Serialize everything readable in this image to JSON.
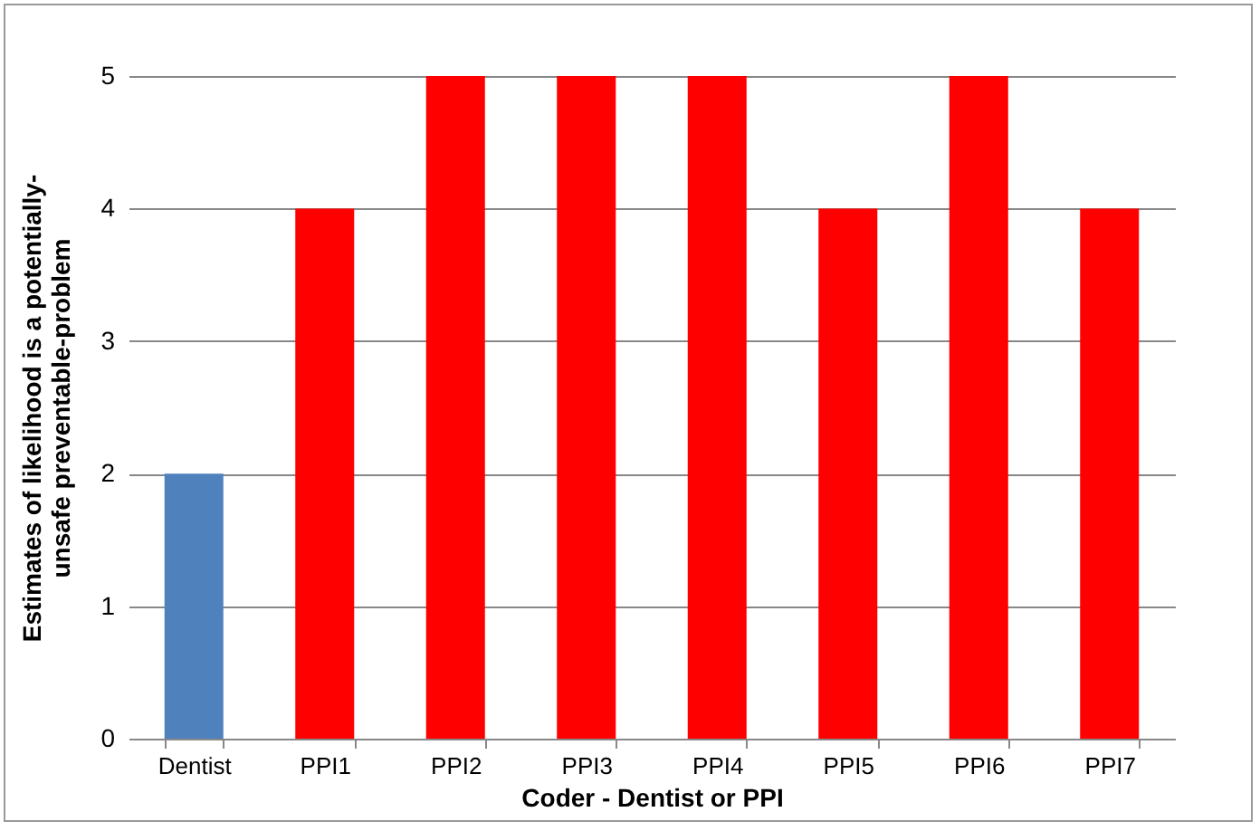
{
  "chart_data": {
    "type": "bar",
    "xlabel": "Coder - Dentist or PPI",
    "ylabel": "Estimates of likelihood is a potentially-unsafe preventable-problem",
    "categories": [
      "Dentist",
      "PPI1",
      "PPI2",
      "PPI3",
      "PPI4",
      "PPI5",
      "PPI6",
      "PPI7"
    ],
    "values": [
      2,
      4,
      5,
      5,
      5,
      4,
      5,
      4
    ],
    "colors": [
      "#4f81bd",
      "#ff0000",
      "#ff0000",
      "#ff0000",
      "#ff0000",
      "#ff0000",
      "#ff0000",
      "#ff0000"
    ],
    "ylim": [
      0,
      5
    ],
    "yticks": [
      0,
      1,
      2,
      3,
      4,
      5
    ],
    "grid": "y"
  }
}
